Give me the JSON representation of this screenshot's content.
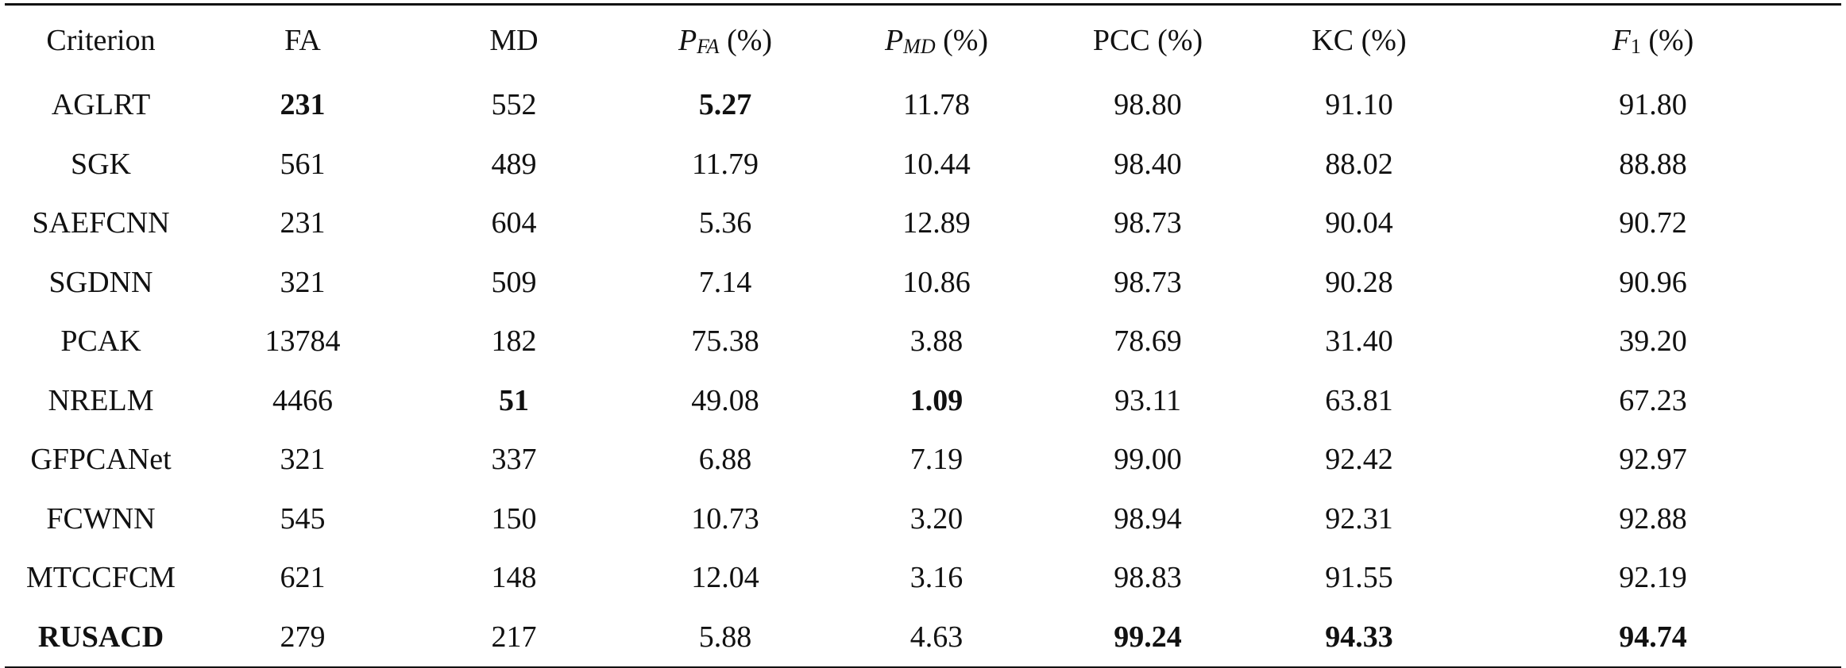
{
  "table": {
    "headers": [
      {
        "main": "Criterion",
        "sub": "",
        "suffix": ""
      },
      {
        "main": "FA",
        "sub": "",
        "suffix": ""
      },
      {
        "main": "MD",
        "sub": "",
        "suffix": ""
      },
      {
        "main": "P",
        "sub": "FA",
        "suffix": " (%)"
      },
      {
        "main": "P",
        "sub": "MD",
        "suffix": " (%)"
      },
      {
        "main": "PCC (%)",
        "sub": "",
        "suffix": ""
      },
      {
        "main": "KC (%)",
        "sub": "",
        "suffix": ""
      },
      {
        "main": "F",
        "sub": "1",
        "suffix": " (%)"
      }
    ],
    "rows": [
      {
        "cells": [
          "AGLRT",
          "231",
          "552",
          "5.27",
          "11.78",
          "98.80",
          "91.10",
          "91.80"
        ],
        "bold": [
          1,
          3
        ]
      },
      {
        "cells": [
          "SGK",
          "561",
          "489",
          "11.79",
          "10.44",
          "98.40",
          "88.02",
          "88.88"
        ],
        "bold": []
      },
      {
        "cells": [
          "SAEFCNN",
          "231",
          "604",
          "5.36",
          "12.89",
          "98.73",
          "90.04",
          "90.72"
        ],
        "bold": []
      },
      {
        "cells": [
          "SGDNN",
          "321",
          "509",
          "7.14",
          "10.86",
          "98.73",
          "90.28",
          "90.96"
        ],
        "bold": []
      },
      {
        "cells": [
          "PCAK",
          "13784",
          "182",
          "75.38",
          "3.88",
          "78.69",
          "31.40",
          "39.20"
        ],
        "bold": []
      },
      {
        "cells": [
          "NRELM",
          "4466",
          "51",
          "49.08",
          "1.09",
          "93.11",
          "63.81",
          "67.23"
        ],
        "bold": [
          2,
          4
        ]
      },
      {
        "cells": [
          "GFPCANet",
          "321",
          "337",
          "6.88",
          "7.19",
          "99.00",
          "92.42",
          "92.97"
        ],
        "bold": []
      },
      {
        "cells": [
          "FCWNN",
          "545",
          "150",
          "10.73",
          "3.20",
          "98.94",
          "92.31",
          "92.88"
        ],
        "bold": []
      },
      {
        "cells": [
          "MTCCFCM",
          "621",
          "148",
          "12.04",
          "3.16",
          "98.83",
          "91.55",
          "92.19"
        ],
        "bold": []
      },
      {
        "cells": [
          "RUSACD",
          "279",
          "217",
          "5.88",
          "4.63",
          "99.24",
          "94.33",
          "94.74"
        ],
        "bold": [
          0,
          5,
          6,
          7
        ]
      }
    ]
  }
}
